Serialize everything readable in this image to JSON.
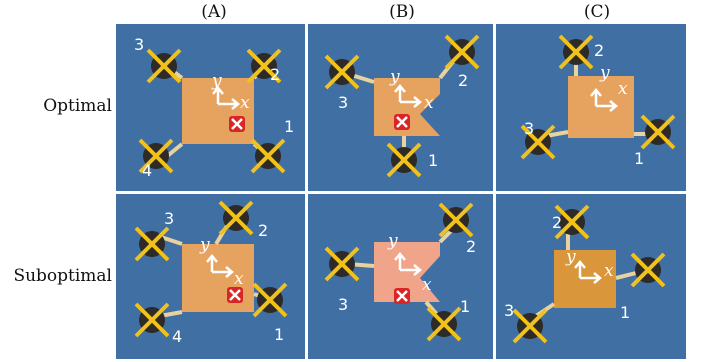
{
  "columns": [
    "(A)",
    "(B)",
    "(C)"
  ],
  "rows": [
    "Optimal",
    "Suboptimal"
  ],
  "axes": {
    "x": "x",
    "y": "y"
  },
  "panels": [
    {
      "id": "A-optimal",
      "labels": [
        "1",
        "2",
        "3",
        "4"
      ]
    },
    {
      "id": "B-optimal",
      "labels": [
        "1",
        "2",
        "3"
      ]
    },
    {
      "id": "C-optimal",
      "labels": [
        "1",
        "2",
        "3"
      ]
    },
    {
      "id": "A-suboptimal",
      "labels": [
        "1",
        "2",
        "3",
        "4"
      ]
    },
    {
      "id": "B-suboptimal",
      "labels": [
        "1",
        "2",
        "3"
      ]
    },
    {
      "id": "C-suboptimal",
      "labels": [
        "1",
        "2",
        "3"
      ]
    }
  ],
  "colors": {
    "mat": "#3f6fa3",
    "board": "#e6a35f",
    "prop": "#f2c21b",
    "fail": "#d92525"
  }
}
